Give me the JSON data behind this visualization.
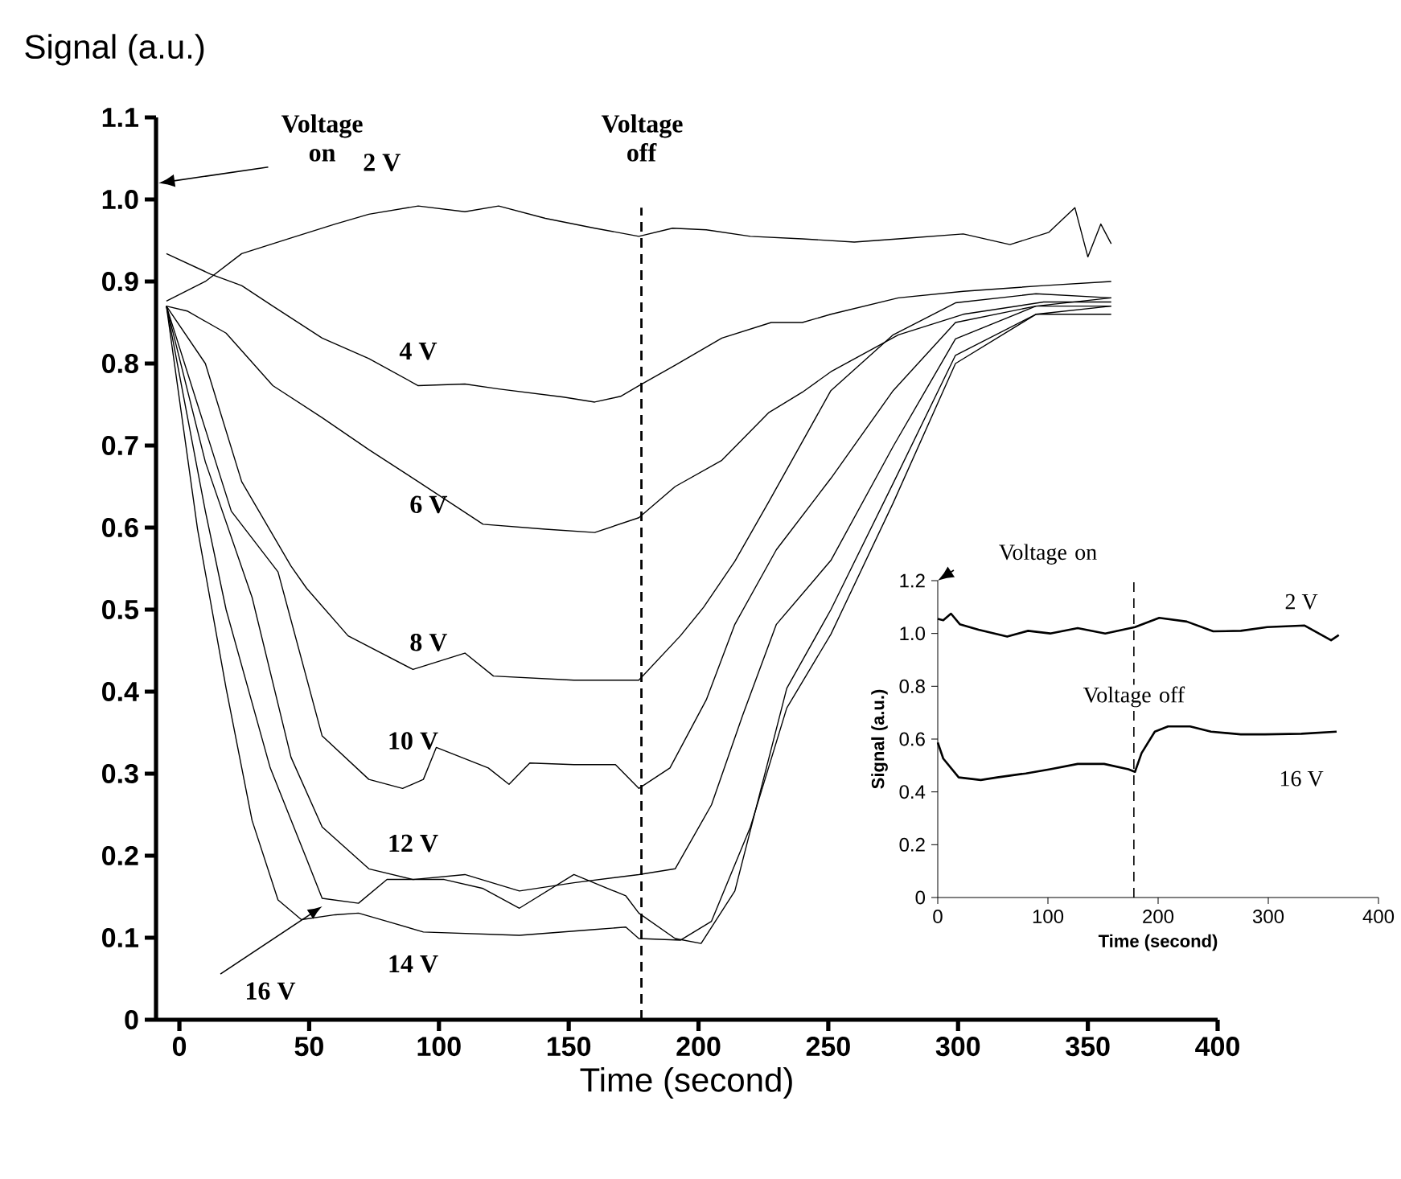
{
  "chart_data": [
    {
      "type": "line",
      "xlabel": "Time (second)",
      "ylabel": "Signal (a.u.)",
      "xlim": [
        -9,
        400
      ],
      "ylim": [
        0,
        1.1
      ],
      "xticks": [
        0,
        50,
        100,
        150,
        200,
        250,
        300,
        350,
        400
      ],
      "yticks": [
        0,
        0.1,
        0.2,
        0.3,
        0.4,
        0.5,
        0.6,
        0.7,
        0.8,
        0.9,
        {
          "value": 1,
          "label": "1.0"
        },
        1.1
      ],
      "grid": false,
      "marker": "none",
      "line_style": "solid",
      "ref_lines": [
        {
          "axis": "x",
          "value": 178,
          "label": "Voltage off",
          "line_style": "dashed"
        }
      ],
      "annotations": [
        "Voltage on"
      ],
      "series": [
        {
          "name": "2 V",
          "color": "#000000",
          "x": [
            -5,
            10,
            24,
            43,
            60,
            73,
            92,
            110,
            123,
            141,
            160,
            177,
            190,
            203,
            220,
            240,
            260,
            277,
            302,
            320,
            335,
            345,
            350,
            355,
            359
          ],
          "values": [
            0.876,
            0.9,
            0.934,
            0.953,
            0.97,
            0.982,
            0.992,
            0.985,
            0.992,
            0.977,
            0.965,
            0.955,
            0.965,
            0.963,
            0.955,
            0.952,
            0.948,
            0.952,
            0.958,
            0.945,
            0.96,
            0.99,
            0.93,
            0.97,
            0.946
          ]
        },
        {
          "name": "4 V",
          "color": "#000000",
          "x": [
            -5,
            12,
            24,
            36,
            55,
            73,
            92,
            110,
            123,
            148,
            160,
            170,
            177,
            191,
            209,
            228,
            240,
            251,
            277,
            302,
            333,
            359
          ],
          "values": [
            0.934,
            0.909,
            0.895,
            0.87,
            0.831,
            0.806,
            0.773,
            0.775,
            0.769,
            0.759,
            0.753,
            0.76,
            0.773,
            0.798,
            0.831,
            0.85,
            0.85,
            0.86,
            0.88,
            0.888,
            0.895,
            0.9
          ]
        },
        {
          "name": "6 V",
          "color": "#000000",
          "x": [
            -5,
            3,
            18,
            36,
            55,
            73,
            92,
            117,
            141,
            160,
            177,
            191,
            209,
            227,
            240,
            251,
            277,
            302,
            333,
            359
          ],
          "values": [
            0.87,
            0.864,
            0.837,
            0.773,
            0.734,
            0.695,
            0.656,
            0.604,
            0.598,
            0.594,
            0.612,
            0.65,
            0.682,
            0.74,
            0.765,
            0.79,
            0.835,
            0.86,
            0.875,
            0.875
          ]
        },
        {
          "name": "8 V",
          "color": "#000000",
          "x": [
            -5,
            10,
            24,
            43,
            49,
            65,
            90,
            110,
            121,
            152,
            177,
            193,
            202,
            214,
            227,
            251,
            275,
            299,
            330,
            359
          ],
          "values": [
            0.87,
            0.8,
            0.656,
            0.553,
            0.526,
            0.468,
            0.427,
            0.447,
            0.419,
            0.414,
            0.414,
            0.468,
            0.503,
            0.559,
            0.631,
            0.767,
            0.835,
            0.874,
            0.885,
            0.88
          ]
        },
        {
          "name": "10 V",
          "color": "#000000",
          "x": [
            -5,
            10,
            20,
            38,
            55,
            73,
            86,
            94,
            99,
            119,
            127,
            135,
            152,
            168,
            177,
            189,
            203,
            214,
            230,
            251,
            275,
            299,
            330,
            359
          ],
          "values": [
            0.87,
            0.72,
            0.62,
            0.546,
            0.346,
            0.293,
            0.282,
            0.293,
            0.332,
            0.307,
            0.287,
            0.313,
            0.311,
            0.311,
            0.282,
            0.307,
            0.39,
            0.482,
            0.573,
            0.66,
            0.767,
            0.85,
            0.87,
            0.88
          ]
        },
        {
          "name": "12 V",
          "color": "#000000",
          "x": [
            -5,
            10,
            28,
            43,
            55,
            73,
            90,
            110,
            131,
            152,
            177,
            191,
            205,
            217,
            230,
            251,
            275,
            299,
            330,
            359
          ],
          "values": [
            0.87,
            0.68,
            0.515,
            0.32,
            0.235,
            0.184,
            0.171,
            0.177,
            0.157,
            0.167,
            0.177,
            0.184,
            0.262,
            0.371,
            0.482,
            0.56,
            0.699,
            0.83,
            0.87,
            0.87
          ]
        },
        {
          "name": "14 V",
          "color": "#000000",
          "x": [
            -5,
            7,
            18,
            28,
            38,
            47,
            60,
            69,
            80,
            94,
            131,
            160,
            172,
            177,
            193,
            205,
            220,
            234,
            251,
            275,
            299,
            330,
            359
          ],
          "values": [
            0.87,
            0.598,
            0.404,
            0.243,
            0.146,
            0.122,
            0.128,
            0.13,
            0.12,
            0.107,
            0.103,
            0.11,
            0.113,
            0.099,
            0.097,
            0.12,
            0.235,
            0.38,
            0.47,
            0.63,
            0.8,
            0.86,
            0.87
          ]
        },
        {
          "name": "16 V",
          "color": "#000000",
          "x": [
            -5,
            10,
            18,
            35,
            49,
            55,
            69,
            80,
            102,
            117,
            131,
            152,
            172,
            177,
            191,
            201,
            214,
            234,
            251,
            275,
            299,
            330,
            359
          ],
          "values": [
            0.87,
            0.62,
            0.5,
            0.307,
            0.196,
            0.148,
            0.142,
            0.171,
            0.171,
            0.16,
            0.136,
            0.177,
            0.151,
            0.13,
            0.099,
            0.093,
            0.157,
            0.404,
            0.5,
            0.654,
            0.81,
            0.86,
            0.86
          ]
        }
      ]
    },
    {
      "type": "line",
      "xlabel": "Time (second)",
      "ylabel": "Signal (a.u.)",
      "xlim": [
        0,
        400
      ],
      "ylim": [
        0,
        1.2
      ],
      "xticks": [
        0,
        100,
        200,
        300,
        400
      ],
      "yticks": [
        0,
        0.2,
        0.4,
        0.6,
        0.8,
        {
          "value": 1,
          "label": "1.0"
        },
        1.2
      ],
      "grid": false,
      "marker": "none",
      "line_style": "solid",
      "ref_lines": [
        {
          "axis": "x",
          "value": 178,
          "label": "Voltage off",
          "line_style": "dashed"
        }
      ],
      "annotations": [
        "Voltage on"
      ],
      "series": [
        {
          "name": "2 V",
          "color": "#000000",
          "x": [
            0,
            5,
            12,
            20,
            37,
            63,
            82,
            102,
            127,
            152,
            179,
            201,
            226,
            250,
            275,
            299,
            333,
            357,
            364
          ],
          "values": [
            1.055,
            1.05,
            1.075,
            1.035,
            1.014,
            0.988,
            1.01,
            1.0,
            1.02,
            1.0,
            1.024,
            1.059,
            1.045,
            1.008,
            1.01,
            1.024,
            1.03,
            0.974,
            0.994
          ]
        },
        {
          "name": "16 V",
          "color": "#000000",
          "x": [
            0,
            5,
            19,
            39,
            54,
            80,
            102,
            127,
            151,
            173,
            179,
            185,
            197,
            209,
            229,
            248,
            275,
            297,
            330,
            362
          ],
          "values": [
            0.587,
            0.526,
            0.455,
            0.445,
            0.455,
            0.47,
            0.486,
            0.506,
            0.506,
            0.486,
            0.476,
            0.547,
            0.628,
            0.648,
            0.648,
            0.628,
            0.618,
            0.618,
            0.62,
            0.628
          ]
        }
      ]
    }
  ]
}
